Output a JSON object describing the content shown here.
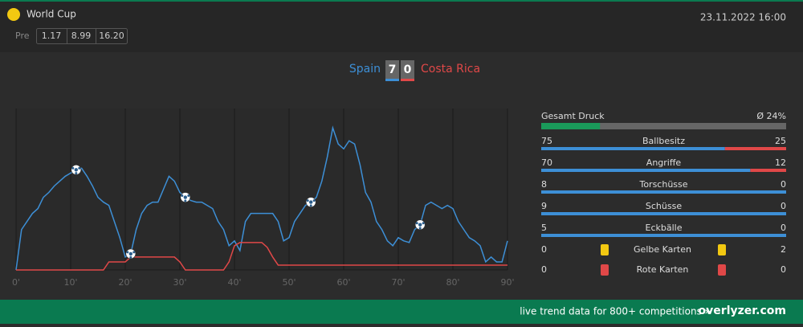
{
  "header": {
    "competition": "World Cup",
    "odds_label": "Pre",
    "odds": [
      "1.17",
      "8.99",
      "16.20"
    ],
    "datetime": "23.11.2022 16:00"
  },
  "score": {
    "home": "Spain",
    "home_goals": "7",
    "away_goals": "0",
    "away": "Costa Rica"
  },
  "chart_data": {
    "type": "line",
    "x": [
      0,
      1,
      2,
      3,
      4,
      5,
      6,
      7,
      8,
      9,
      10,
      11,
      12,
      13,
      14,
      15,
      16,
      17,
      18,
      19,
      20,
      21,
      22,
      23,
      24,
      25,
      26,
      27,
      28,
      29,
      30,
      31,
      32,
      33,
      34,
      35,
      36,
      37,
      38,
      39,
      40,
      41,
      42,
      43,
      44,
      45,
      46,
      47,
      48,
      49,
      50,
      51,
      52,
      53,
      54,
      55,
      56,
      57,
      58,
      59,
      60,
      61,
      62,
      63,
      64,
      65,
      66,
      67,
      68,
      69,
      70,
      71,
      72,
      73,
      74,
      75,
      76,
      77,
      78,
      79,
      80,
      81,
      82,
      83,
      84,
      85,
      86,
      87,
      88,
      89,
      90
    ],
    "series": [
      {
        "name": "Spain",
        "color": "#3d8fd6",
        "values": [
          0,
          25,
          30,
          35,
          38,
          45,
          48,
          52,
          55,
          58,
          60,
          62,
          63,
          58,
          52,
          45,
          42,
          40,
          30,
          20,
          8,
          10,
          25,
          35,
          40,
          42,
          42,
          50,
          58,
          55,
          48,
          45,
          43,
          42,
          42,
          40,
          38,
          30,
          25,
          15,
          18,
          12,
          30,
          35,
          35,
          35,
          35,
          35,
          30,
          18,
          20,
          30,
          35,
          40,
          42,
          45,
          55,
          70,
          88,
          78,
          75,
          80,
          78,
          65,
          48,
          42,
          30,
          25,
          18,
          15,
          20,
          18,
          17,
          25,
          28,
          40,
          42,
          40,
          38,
          40,
          38,
          30,
          25,
          20,
          18,
          15,
          5,
          8,
          5,
          5,
          18
        ]
      },
      {
        "name": "Costa Rica",
        "color": "#e04848",
        "values": [
          0,
          0,
          0,
          0,
          0,
          0,
          0,
          0,
          0,
          0,
          0,
          0,
          0,
          0,
          0,
          0,
          0,
          5,
          5,
          5,
          5,
          8,
          8,
          8,
          8,
          8,
          8,
          8,
          8,
          8,
          5,
          0,
          0,
          0,
          0,
          0,
          0,
          0,
          0,
          5,
          15,
          17,
          17,
          17,
          17,
          17,
          14,
          8,
          3,
          3,
          3,
          3,
          3,
          3,
          3,
          3,
          3,
          3,
          3,
          3,
          3,
          3,
          3,
          3,
          3,
          3,
          3,
          3,
          3,
          3,
          3,
          3,
          3,
          3,
          3,
          3,
          3,
          3,
          3,
          3,
          3,
          3,
          3,
          3,
          3,
          3,
          3,
          3,
          3,
          3,
          3
        ]
      }
    ],
    "goals": [
      11,
      21,
      31,
      54,
      74
    ],
    "xlim": [
      0,
      90
    ],
    "ylim": [
      0,
      100
    ],
    "xticks": [
      {
        "value": 0,
        "label": "0'"
      },
      {
        "value": 10,
        "label": "10'"
      },
      {
        "value": 20,
        "label": "20'"
      },
      {
        "value": 30,
        "label": "30'"
      },
      {
        "value": 40,
        "label": "40'"
      },
      {
        "value": 50,
        "label": "50'"
      },
      {
        "value": 60,
        "label": "60'"
      },
      {
        "value": 70,
        "label": "70'"
      },
      {
        "value": 80,
        "label": "80'"
      },
      {
        "value": 90,
        "label": "90'"
      }
    ]
  },
  "stats": {
    "pressure_title": "Gesamt Druck",
    "pressure_label": "Ø 24%",
    "pressure": 24,
    "rows": [
      {
        "name": "Ballbesitz",
        "home": 75,
        "away": 25
      },
      {
        "name": "Angriffe",
        "home": 70,
        "away": 12
      },
      {
        "name": "Torschüsse",
        "home": 8,
        "away": 0
      },
      {
        "name": "Schüsse",
        "home": 9,
        "away": 0
      },
      {
        "name": "Eckbälle",
        "home": 5,
        "away": 0
      }
    ],
    "cards": [
      {
        "name": "Gelbe Karten",
        "home": 0,
        "away": 2,
        "color": "#f2c811"
      },
      {
        "name": "Rote Karten",
        "home": 0,
        "away": 0,
        "color": "#e04848"
      }
    ]
  },
  "footer": {
    "text": "live trend data for 800+ competitions »",
    "brand": "overlyzer.com"
  }
}
